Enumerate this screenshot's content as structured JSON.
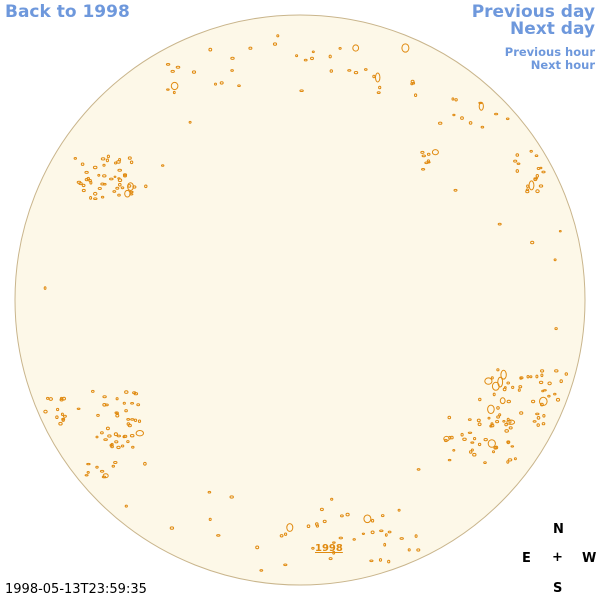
{
  "nav": {
    "back_label": "Back to 1998",
    "previous_day": "Previous day",
    "next_day": "Next day",
    "previous_hour": "Previous hour",
    "next_hour": "Next hour"
  },
  "timestamp": "1998-05-13T23:59:35",
  "year_marker": "1998",
  "compass": {
    "north": "N",
    "east": "E",
    "center": "+",
    "west": "W",
    "south": "S"
  },
  "colors": {
    "link": "#6e98dc",
    "disk_fill": "#fdf8e8",
    "disk_edge": "#c9b58c",
    "contour": "#e08a10"
  }
}
